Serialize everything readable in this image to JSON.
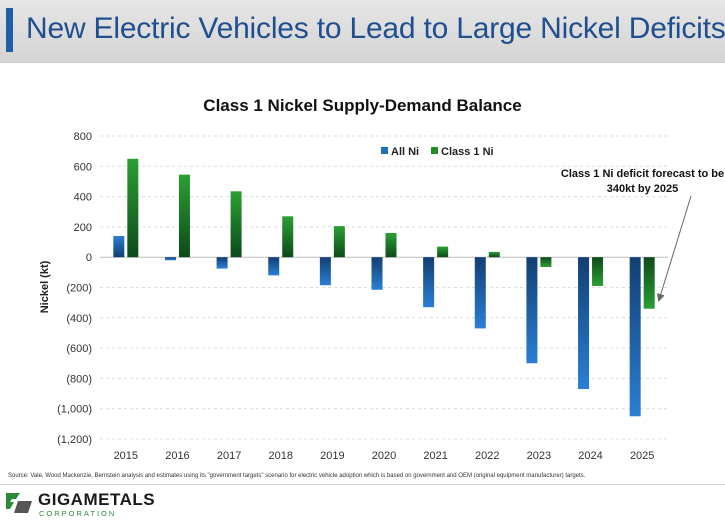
{
  "slide": {
    "title": "New Electric Vehicles to Lead to Large Nickel Deficits",
    "source_note": "Source: Vale, Wood Mackenzie, Bernstein analysis and estimates using its \"government targets\" scenario for electric vehicle adoption which is based on government and OEM (original equipment manufacturer) targets.",
    "annotation": "Class 1 Ni deficit forecast to be 340kt by 2025",
    "logo_name": "GIGAMETALS",
    "logo_sub": "CORPORATION"
  },
  "colors": {
    "all_ni": "#1f6fbf",
    "class1_ni": "#228b22",
    "accent": "#1f5fa8"
  },
  "chart_data": {
    "type": "bar",
    "title": "Class 1 Nickel Supply-Demand Balance",
    "xlabel": "",
    "ylabel": "Nickel (kt)",
    "categories": [
      "2015",
      "2016",
      "2017",
      "2018",
      "2019",
      "2020",
      "2021",
      "2022",
      "2023",
      "2024",
      "2025"
    ],
    "series": [
      {
        "name": "All Ni",
        "values": [
          140,
          -20,
          -75,
          -120,
          -185,
          -215,
          -330,
          -470,
          -700,
          -870,
          -1050
        ]
      },
      {
        "name": "Class 1 Ni",
        "values": [
          650,
          545,
          435,
          270,
          205,
          160,
          70,
          35,
          -65,
          -190,
          -340
        ]
      }
    ],
    "ylim": [
      -1200,
      800
    ],
    "yticks": [
      800,
      600,
      400,
      200,
      0,
      -200,
      -400,
      -600,
      -800,
      -1000,
      -1200
    ],
    "ytick_labels": [
      "800",
      "600",
      "400",
      "200",
      "0",
      "(200)",
      "(400)",
      "(600)",
      "(800)",
      "(1,000)",
      "(1,200)"
    ],
    "grid": true,
    "legend": "top-center"
  }
}
